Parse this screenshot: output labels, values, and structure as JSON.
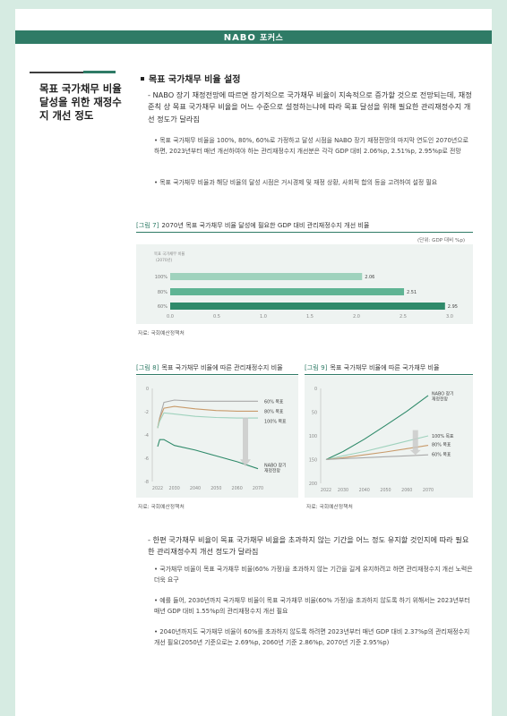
{
  "header": {
    "logo": "NABO",
    "label": "포커스"
  },
  "sidebar": {
    "title": "목표 국가채무 비율 달성을 위한 재정수지 개선 정도"
  },
  "section": {
    "title": "목표 국가채무 비율 설정"
  },
  "para1": "- NABO 장기 재정전망에 따르면 장기적으로 국가채무 비율이 지속적으로 증가할 것으로 전망되는데, 재정준칙 상 목표 국가채무 비율을 어느 수준으로 설정하는냐에 따라 목표 달성을 위해 필요한 관리재정수지 개선 정도가 달라짐",
  "bullets1": [
    "• 목표 국가채무 비율을 100%, 80%, 60%로 가정하고 달성 시점을 NABO 장기 재정전망의 마지막 연도인 2070년으로 하면, 2023년부터 매년 개선하여야 하는 관리재정수지 개선분은 각각 GDP 대비 2.06%p, 2.51%p, 2.95%p로 전망",
    "• 목표 국가채무 비율과 해당 비율의 달성 시점은 거시경제 및 재정 상황, 사회적 합의 등을 고려하여 설정 필요"
  ],
  "fig7": {
    "tag": "[그림 7]",
    "title": "2070년 목표 국가채무 비율 달성에 필요한 GDP 대비 관리재정수지 개선 비율",
    "unit": "(단위: GDP 대비 %p)",
    "legend_label": "목표 국가채무 비율",
    "legend_sub": "(2070년)",
    "source": "자료: 국회예산정책처"
  },
  "fig8": {
    "tag": "[그림 8]",
    "title": "목표 국가채무 비율에 따른 관리재정수지 비율",
    "source": "자료: 국회예산정책처",
    "labels": {
      "l60": "60% 목표",
      "l80": "80% 목표",
      "l100": "100% 목표",
      "nabo1": "NABO 장기",
      "nabo2": "재정전망"
    }
  },
  "fig9": {
    "tag": "[그림 9]",
    "title": "목표 국가채무 비율에 따른 국가채무 비율",
    "source": "자료: 국회예산정책처",
    "labels": {
      "nabo1": "NABO 장기",
      "nabo2": "재정전망",
      "l100": "100% 목표",
      "l80": "80% 목표",
      "l60": "60% 목표"
    }
  },
  "para2": "- 한편 국가채무 비율이 목표 국가채무 비율을 초과하지 않는 기간을 어느 정도 유지할 것인지에 따라 필요한 관리재정수지 개선 정도가 달라짐",
  "bullets2": [
    "• 국가채무 비율이 목표 국가채무 비율(60% 가정)을 초과하지 않는 기간을 길게 유지하려고 하면 관리재정수지 개선 노력은 더욱 요구",
    "• 예를 들어, 2030년까지 국가채무 비율이 목표 국가채무 비율(60% 가정)을 초과하지 않도록 하기 위해서는 2023년부터 매년 GDP 대비 1.55%p의 관리재정수지 개선 필요",
    "• 2040년까지도 국가채무 비율이 60%를 초과하지 않도록 하려면 2023년부터 매년 GDP 대비 2.37%p의 관리재정수지 개선 필요(2050년 기준으로는 2.69%p, 2060년 기준 2.86%p, 2070년 기준 2.95%p)"
  ],
  "chart_data": [
    {
      "type": "bar",
      "orientation": "horizontal",
      "categories": [
        "100%",
        "80%",
        "60%"
      ],
      "values": [
        2.06,
        2.51,
        2.95
      ],
      "xlim": [
        0,
        3.0
      ],
      "xticks": [
        "0.0",
        "0.5",
        "1.0",
        "1.5",
        "2.0",
        "2.5",
        "3.0"
      ],
      "colors": [
        "#9fd2bd",
        "#5fb494",
        "#2f8a6a"
      ]
    },
    {
      "type": "line",
      "x": [
        2022,
        2030,
        2040,
        2050,
        2060,
        2070
      ],
      "xticks": [
        "2022",
        "2030",
        "2040",
        "2050",
        "2060",
        "2070"
      ],
      "ylim": [
        -8,
        0
      ],
      "yticks": [
        "0",
        "-2",
        "-4",
        "-6",
        "-8"
      ],
      "series": [
        {
          "name": "60% 목표",
          "color": "#a9a9a9",
          "points": [
            [
              2022,
              -3.4
            ],
            [
              2023,
              -2.5
            ],
            [
              2025,
              -1.2
            ],
            [
              2030,
              -1.0
            ],
            [
              2040,
              -1.1
            ],
            [
              2050,
              -1.1
            ],
            [
              2060,
              -1.1
            ],
            [
              2070,
              -1.1
            ]
          ]
        },
        {
          "name": "80% 목표",
          "color": "#c89a6a",
          "points": [
            [
              2022,
              -3.4
            ],
            [
              2023,
              -2.6
            ],
            [
              2025,
              -1.7
            ],
            [
              2030,
              -1.55
            ],
            [
              2040,
              -1.75
            ],
            [
              2050,
              -1.9
            ],
            [
              2060,
              -1.95
            ],
            [
              2070,
              -1.95
            ]
          ]
        },
        {
          "name": "100% 목표",
          "color": "#9fd2bd",
          "points": [
            [
              2022,
              -3.4
            ],
            [
              2023,
              -2.8
            ],
            [
              2025,
              -2.1
            ],
            [
              2030,
              -2.2
            ],
            [
              2040,
              -2.4
            ],
            [
              2050,
              -2.5
            ],
            [
              2060,
              -2.55
            ],
            [
              2070,
              -2.55
            ]
          ]
        },
        {
          "name": "NABO 장기 재정전망",
          "color": "#2f8a6a",
          "points": [
            [
              2022,
              -5.0
            ],
            [
              2023,
              -4.4
            ],
            [
              2025,
              -4.4
            ],
            [
              2030,
              -4.9
            ],
            [
              2040,
              -5.3
            ],
            [
              2050,
              -5.8
            ],
            [
              2060,
              -6.3
            ],
            [
              2070,
              -6.9
            ]
          ]
        }
      ]
    },
    {
      "type": "line",
      "x": [
        2022,
        2030,
        2040,
        2050,
        2060,
        2070
      ],
      "xticks": [
        "2022",
        "2030",
        "2040",
        "2050",
        "2060",
        "2070"
      ],
      "ylim": [
        0,
        200
      ],
      "yticks": [
        "0",
        "50",
        "100",
        "150",
        "200"
      ],
      "series": [
        {
          "name": "NABO 장기 재정전망",
          "color": "#2f8a6a",
          "points": [
            [
              2022,
              50
            ],
            [
              2030,
              67
            ],
            [
              2040,
              93
            ],
            [
              2050,
              122
            ],
            [
              2060,
              152
            ],
            [
              2070,
              185
            ]
          ]
        },
        {
          "name": "100% 목표",
          "color": "#9fd2bd",
          "points": [
            [
              2022,
              50
            ],
            [
              2030,
              58
            ],
            [
              2040,
              67
            ],
            [
              2050,
              78
            ],
            [
              2060,
              89
            ],
            [
              2070,
              100
            ]
          ]
        },
        {
          "name": "80% 목표",
          "color": "#c89a6a",
          "points": [
            [
              2022,
              50
            ],
            [
              2030,
              54
            ],
            [
              2040,
              60
            ],
            [
              2050,
              66
            ],
            [
              2060,
              73
            ],
            [
              2070,
              80
            ]
          ]
        },
        {
          "name": "60% 목표",
          "color": "#a9a9a9",
          "points": [
            [
              2022,
              50
            ],
            [
              2030,
              52
            ],
            [
              2040,
              54
            ],
            [
              2050,
              56
            ],
            [
              2060,
              58
            ],
            [
              2070,
              60
            ]
          ]
        }
      ]
    }
  ],
  "colors": {
    "brand": "#2f7b66",
    "page_bg": "#d6ebe2",
    "chart_bg": "#eef3f1",
    "arrow": "#c8c8c8"
  }
}
